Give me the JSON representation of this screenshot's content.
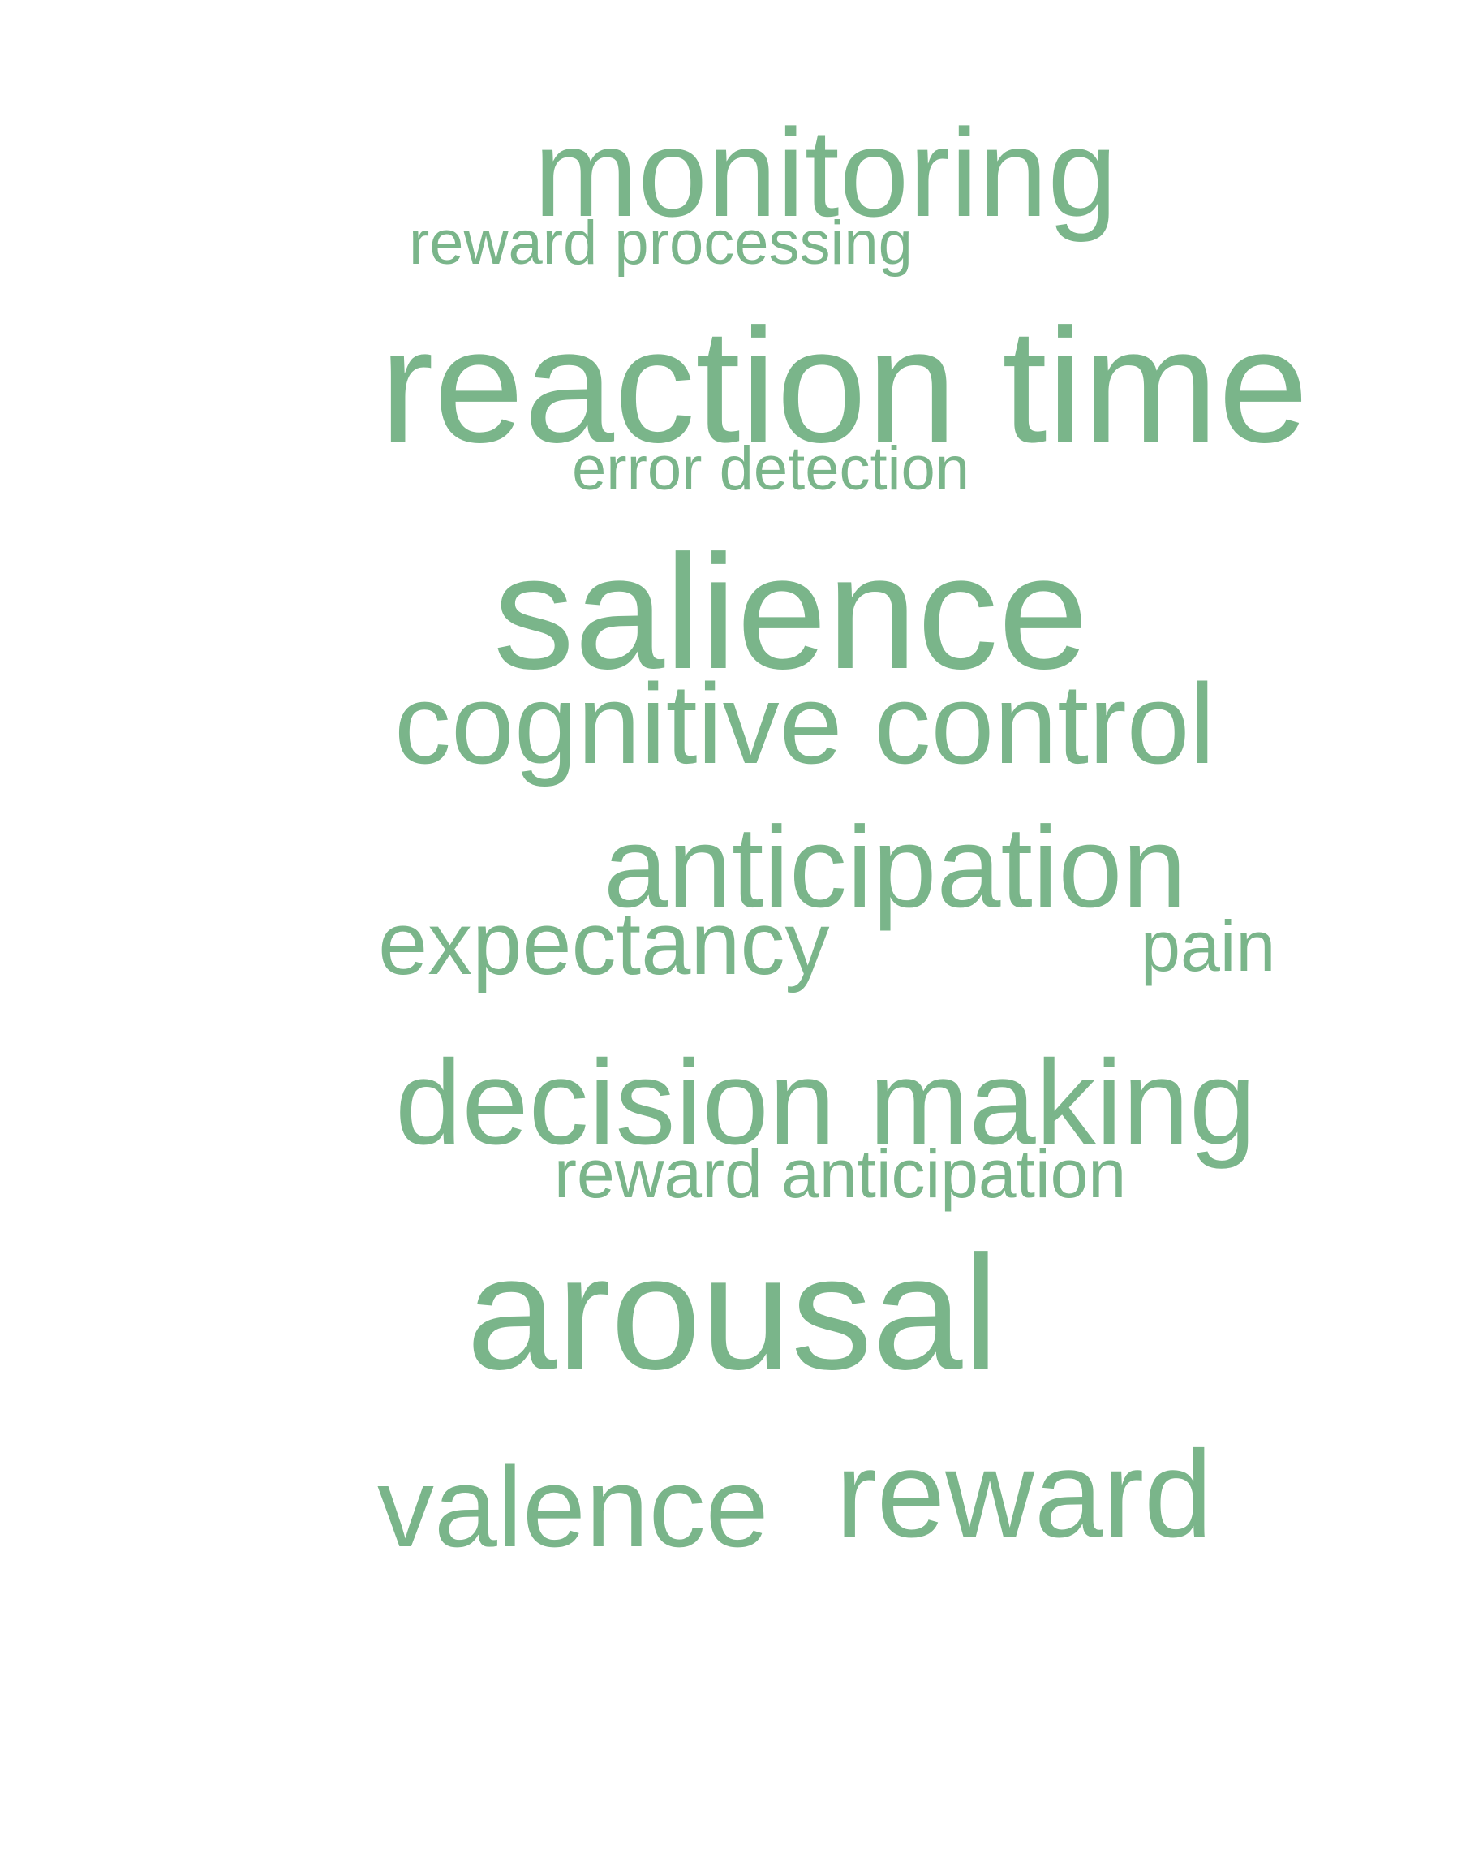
{
  "colors": {
    "background": "#ffffff",
    "word": "#7ab58a"
  },
  "words": [
    "monitoring",
    "reward processing",
    "reaction time",
    "error detection",
    "salience",
    "cognitive control",
    "anticipation",
    "expectancy",
    "pain",
    "decision making",
    "reward anticipation",
    "arousal",
    "valence",
    "reward"
  ]
}
